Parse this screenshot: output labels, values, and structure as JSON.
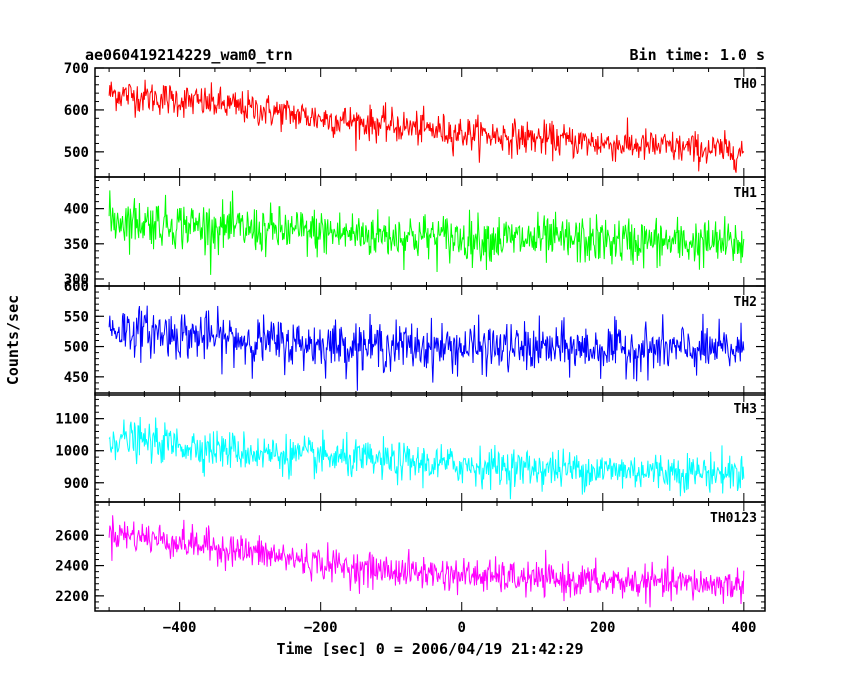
{
  "header": {
    "title": "ae060419214229_wam0_trn",
    "bin_time": "Bin time: 1.0 s"
  },
  "chart_data": {
    "type": "line",
    "xlabel": "Time [sec] 0 = 2006/04/19 21:42:29",
    "ylabel": "Counts/sec",
    "xlim": [
      -520,
      430
    ],
    "x_ticks": [
      -400,
      -200,
      0,
      200,
      400
    ],
    "x_range": [
      -500,
      400
    ],
    "bin_time_s": 1.0,
    "grid": false,
    "panels": [
      {
        "name": "TH0",
        "color": "#ff0000",
        "ylim": [
          440,
          700
        ],
        "y_ticks": [
          500,
          600,
          700
        ],
        "trend": [
          [
            -500,
            640
          ],
          [
            -350,
            615
          ],
          [
            -200,
            580
          ],
          [
            0,
            545
          ],
          [
            200,
            520
          ],
          [
            400,
            500
          ]
        ],
        "noise_sd": 20
      },
      {
        "name": "TH1",
        "color": "#00ff00",
        "ylim": [
          290,
          445
        ],
        "y_ticks": [
          300,
          350,
          400
        ],
        "trend": [
          [
            -500,
            385
          ],
          [
            -300,
            370
          ],
          [
            0,
            358
          ],
          [
            200,
            354
          ],
          [
            400,
            350
          ]
        ],
        "noise_sd": 17
      },
      {
        "name": "TH2",
        "color": "#0000ff",
        "ylim": [
          420,
          600
        ],
        "y_ticks": [
          450,
          500,
          550,
          600
        ],
        "trend": [
          [
            -500,
            530
          ],
          [
            -250,
            505
          ],
          [
            0,
            498
          ],
          [
            200,
            496
          ],
          [
            400,
            494
          ]
        ],
        "noise_sd": 20
      },
      {
        "name": "TH3",
        "color": "#00ffff",
        "ylim": [
          840,
          1180
        ],
        "y_ticks": [
          900,
          1000,
          1100
        ],
        "trend": [
          [
            -500,
            1040
          ],
          [
            -300,
            995
          ],
          [
            -100,
            965
          ],
          [
            100,
            945
          ],
          [
            400,
            930
          ]
        ],
        "noise_sd": 30
      },
      {
        "name": "TH0123",
        "color": "#ff00ff",
        "ylim": [
          2100,
          2820
        ],
        "y_ticks": [
          2200,
          2400,
          2600
        ],
        "trend": [
          [
            -500,
            2620
          ],
          [
            -300,
            2490
          ],
          [
            -150,
            2380
          ],
          [
            100,
            2310
          ],
          [
            400,
            2270
          ]
        ],
        "noise_sd": 55
      }
    ]
  }
}
